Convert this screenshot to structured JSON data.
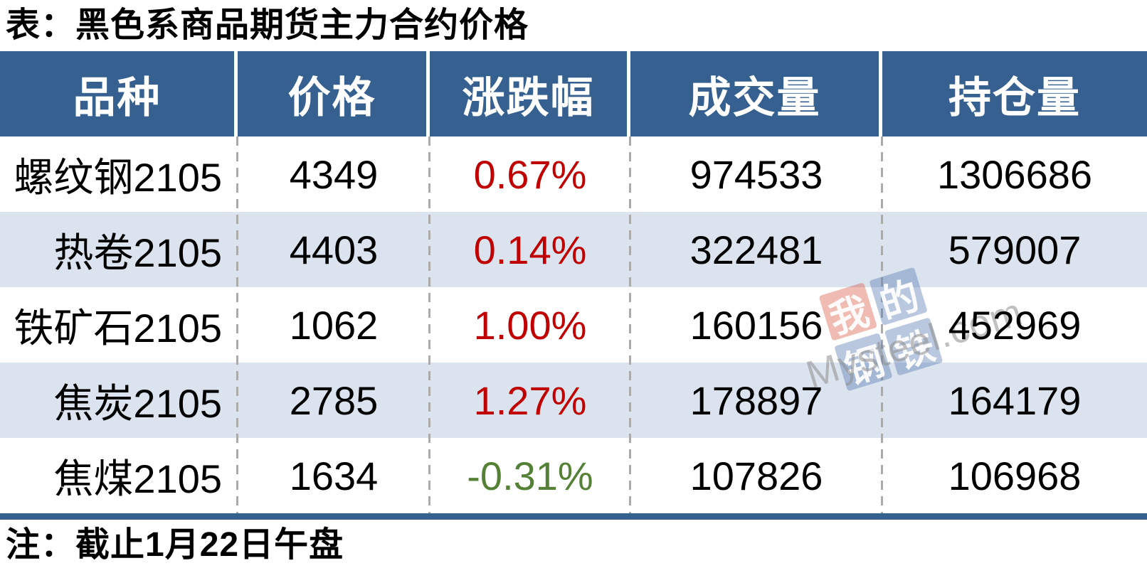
{
  "title": "表：黑色系商品期货主力合约价格",
  "note": "注：截止1月22日午盘",
  "table": {
    "columns": [
      "品种",
      "价格",
      "涨跌幅",
      "成交量",
      "持仓量"
    ],
    "rows": [
      {
        "variety": "螺纹钢2105",
        "price": "4349",
        "change": "0.67%",
        "change_dir": "up",
        "volume": "974533",
        "open_interest": "1306686"
      },
      {
        "variety": "热卷2105",
        "price": "4403",
        "change": "0.14%",
        "change_dir": "up",
        "volume": "322481",
        "open_interest": "579007"
      },
      {
        "variety": "铁矿石2105",
        "price": "1062",
        "change": "1.00%",
        "change_dir": "up",
        "volume": "160156",
        "open_interest": "452969"
      },
      {
        "variety": "焦炭2105",
        "price": "2785",
        "change": "1.27%",
        "change_dir": "up",
        "volume": "178897",
        "open_interest": "164179"
      },
      {
        "variety": "焦煤2105",
        "price": "1634",
        "change": "-0.31%",
        "change_dir": "down",
        "volume": "107826",
        "open_interest": "106968"
      }
    ]
  },
  "chart_data": {
    "type": "table",
    "title": "表：黑色系商品期货主力合约价格",
    "columns": [
      "品种",
      "价格",
      "涨跌幅",
      "成交量",
      "持仓量"
    ],
    "rows": [
      [
        "螺纹钢2105",
        4349,
        "0.67%",
        974533,
        1306686
      ],
      [
        "热卷2105",
        4403,
        "0.14%",
        322481,
        579007
      ],
      [
        "铁矿石2105",
        1062,
        "1.00%",
        160156,
        452969
      ],
      [
        "焦炭2105",
        2785,
        "1.27%",
        178897,
        164179
      ],
      [
        "焦煤2105",
        1634,
        "-0.31%",
        107826,
        106968
      ]
    ],
    "note": "注：截止1月22日午盘"
  },
  "watermark": {
    "squares": [
      {
        "char": "我",
        "tone": "red"
      },
      {
        "char": "的",
        "tone": "blue"
      },
      {
        "char": "钢",
        "tone": "blue"
      },
      {
        "char": "铁",
        "tone": "blue"
      }
    ],
    "text": "Mysteel.com"
  },
  "colors": {
    "header_bg": "#35608F",
    "row_alt_bg": "#DAE3EE",
    "up_red": "#C00000",
    "down_green": "#548135",
    "divider_gray": "#ABABAB"
  }
}
